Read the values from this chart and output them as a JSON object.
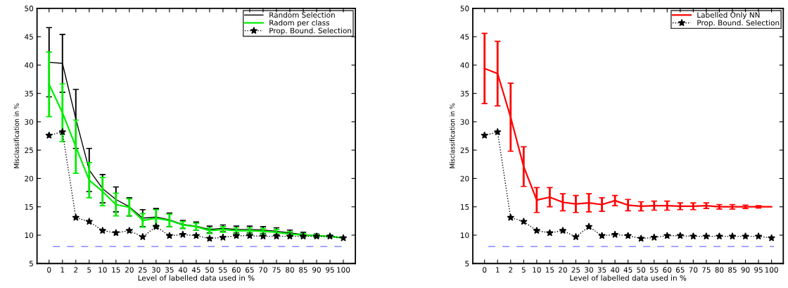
{
  "chart_data": [
    {
      "type": "line",
      "xlabel": "Level of labelled data used in %",
      "ylabel": "Misclassification in %",
      "categories": [
        "0",
        "1",
        "2",
        "5",
        "10",
        "15",
        "20",
        "25",
        "30",
        "35",
        "40",
        "45",
        "50",
        "55",
        "60",
        "65",
        "70",
        "75",
        "80",
        "85",
        "90",
        "95",
        "100"
      ],
      "ylim": [
        5,
        50
      ],
      "yticks": [
        5,
        10,
        15,
        20,
        25,
        30,
        35,
        40,
        45,
        50
      ],
      "legend": "top right",
      "grid": false,
      "series": [
        {
          "name": "Random Selection",
          "color": "#000000",
          "line_style": "solid",
          "marker": "none",
          "values": [
            40.5,
            40.3,
            30.5,
            21.5,
            18.2,
            16.3,
            15.0,
            13.0,
            13.2,
            12.7,
            11.9,
            11.6,
            11.0,
            11.2,
            11.0,
            11.0,
            10.9,
            10.7,
            10.4,
            10.1,
            9.9,
            9.8,
            9.5
          ],
          "errors": [
            6.1,
            5.1,
            5.2,
            3.8,
            2.5,
            2.2,
            1.6,
            1.5,
            1.5,
            1.2,
            0.7,
            0.7,
            0.6,
            0.6,
            0.6,
            0.6,
            0.6,
            0.6,
            0.5,
            0.4,
            0.3,
            0.2,
            null
          ]
        },
        {
          "name": "Radom per class",
          "color": "#00ee00",
          "line_style": "solid",
          "marker": "none",
          "values": [
            36.6,
            31.6,
            25.6,
            19.7,
            17.7,
            15.4,
            14.9,
            12.6,
            13.0,
            12.6,
            11.8,
            11.5,
            10.8,
            11.0,
            10.8,
            10.8,
            10.7,
            10.5,
            10.2,
            10.0,
            9.9,
            9.8,
            9.5
          ],
          "errors": [
            5.7,
            5.1,
            4.7,
            3.1,
            2.5,
            2.0,
            1.5,
            1.2,
            1.5,
            1.1,
            0.6,
            0.6,
            0.5,
            0.5,
            0.5,
            0.5,
            0.5,
            0.5,
            0.4,
            0.3,
            0.2,
            0.2,
            null
          ]
        },
        {
          "name": "Prop. Bound. Selection",
          "color": "#000000",
          "line_style": "dotted",
          "marker": "star",
          "values": [
            27.6,
            28.2,
            13.1,
            12.4,
            10.8,
            10.4,
            10.8,
            9.7,
            11.5,
            9.9,
            10.1,
            9.9,
            9.4,
            9.6,
            9.9,
            9.9,
            9.8,
            9.8,
            9.8,
            9.8,
            9.8,
            9.8,
            9.5
          ]
        }
      ],
      "ref_lines": [
        {
          "axis": "y",
          "value": 8,
          "color": "#9999ff",
          "line_style": "dashed"
        }
      ]
    },
    {
      "type": "line",
      "xlabel": "Level of labelled data used in %",
      "ylabel": "Misclassification in %",
      "categories": [
        "0",
        "1",
        "2",
        "5",
        "10",
        "15",
        "20",
        "25",
        "30",
        "35",
        "40",
        "45",
        "50",
        "55",
        "60",
        "65",
        "70",
        "75",
        "80",
        "85",
        "90",
        "95",
        "100"
      ],
      "ylim": [
        5,
        50
      ],
      "yticks": [
        5,
        10,
        15,
        20,
        25,
        30,
        35,
        40,
        45,
        50
      ],
      "legend": "top right",
      "grid": false,
      "series": [
        {
          "name": "Labelled Only NN",
          "color": "#ff0000",
          "line_style": "solid",
          "marker": "none",
          "values": [
            39.4,
            38.5,
            30.8,
            22.1,
            16.2,
            16.7,
            15.8,
            15.5,
            15.7,
            15.4,
            16.1,
            15.3,
            15.1,
            15.2,
            15.2,
            15.1,
            15.1,
            15.2,
            15.0,
            15.0,
            15.0,
            15.0,
            15.0
          ],
          "errors": [
            6.2,
            5.7,
            6.0,
            3.5,
            2.2,
            1.7,
            1.5,
            1.5,
            1.6,
            1.2,
            0.9,
            1.0,
            0.8,
            0.8,
            0.8,
            0.6,
            0.6,
            0.5,
            0.4,
            0.4,
            0.3,
            0.2,
            null
          ]
        },
        {
          "name": "Prop. Bound. Selection",
          "color": "#000000",
          "line_style": "dotted",
          "marker": "star",
          "values": [
            27.6,
            28.2,
            13.1,
            12.4,
            10.8,
            10.4,
            10.8,
            9.7,
            11.5,
            9.9,
            10.1,
            9.9,
            9.4,
            9.6,
            9.9,
            9.9,
            9.8,
            9.8,
            9.8,
            9.8,
            9.8,
            9.8,
            9.5
          ]
        }
      ],
      "ref_lines": [
        {
          "axis": "y",
          "value": 8,
          "color": "#9999ff",
          "line_style": "dashed"
        }
      ]
    }
  ]
}
